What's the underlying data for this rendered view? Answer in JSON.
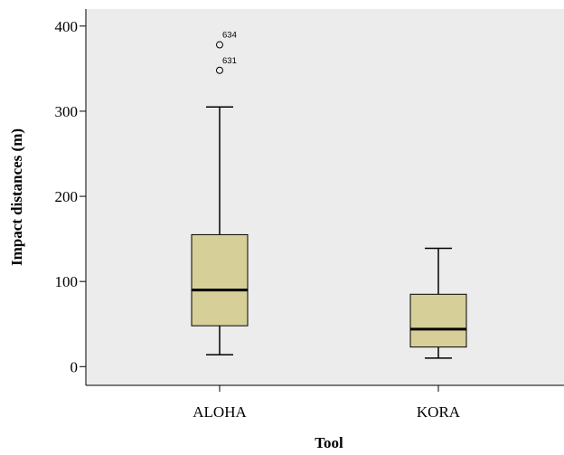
{
  "chart_data": {
    "type": "box",
    "xlabel": "Tool",
    "ylabel": "Impact distances (m)",
    "ylim": [
      -22,
      420
    ],
    "yticks": [
      "0",
      "100",
      "200",
      "300",
      "400"
    ],
    "grid": false,
    "categories": [
      "ALOHA",
      "KORA"
    ],
    "boxes": [
      {
        "category": "ALOHA",
        "whisker_low": 14,
        "q1": 48,
        "median": 90,
        "q3": 155,
        "whisker_high": 305,
        "outliers": [
          {
            "label": "631",
            "value": 348
          },
          {
            "label": "634",
            "value": 378
          }
        ]
      },
      {
        "category": "KORA",
        "whisker_low": 10,
        "q1": 23,
        "median": 44,
        "q3": 85,
        "whisker_high": 139,
        "outliers": []
      }
    ],
    "colors": {
      "plot_background": "#ececec",
      "box_fill": "#d6cf98",
      "stroke": "#000000"
    }
  }
}
